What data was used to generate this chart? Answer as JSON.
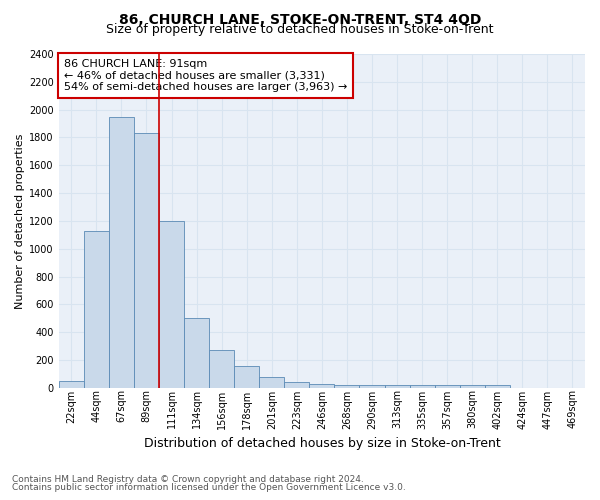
{
  "title": "86, CHURCH LANE, STOKE-ON-TRENT, ST4 4QD",
  "subtitle": "Size of property relative to detached houses in Stoke-on-Trent",
  "xlabel": "Distribution of detached houses by size in Stoke-on-Trent",
  "ylabel": "Number of detached properties",
  "footnote1": "Contains HM Land Registry data © Crown copyright and database right 2024.",
  "footnote2": "Contains public sector information licensed under the Open Government Licence v3.0.",
  "annotation_line1": "86 CHURCH LANE: 91sqm",
  "annotation_line2": "← 46% of detached houses are smaller (3,331)",
  "annotation_line3": "54% of semi-detached houses are larger (3,963) →",
  "bar_color": "#c9d9ea",
  "bar_edge_color": "#5a8ab5",
  "vline_color": "#cc0000",
  "annotation_box_edgecolor": "#cc0000",
  "annotation_box_facecolor": "#ffffff",
  "categories": [
    "22sqm",
    "44sqm",
    "67sqm",
    "89sqm",
    "111sqm",
    "134sqm",
    "156sqm",
    "178sqm",
    "201sqm",
    "223sqm",
    "246sqm",
    "268sqm",
    "290sqm",
    "313sqm",
    "335sqm",
    "357sqm",
    "380sqm",
    "402sqm",
    "424sqm",
    "447sqm",
    "469sqm"
  ],
  "values": [
    50,
    1130,
    1950,
    1830,
    1200,
    500,
    270,
    155,
    80,
    40,
    25,
    20,
    20,
    20,
    20,
    20,
    20,
    20,
    0,
    0,
    0
  ],
  "ylim": [
    0,
    2400
  ],
  "yticks": [
    0,
    200,
    400,
    600,
    800,
    1000,
    1200,
    1400,
    1600,
    1800,
    2000,
    2200,
    2400
  ],
  "vline_x": 3.5,
  "title_fontsize": 10,
  "subtitle_fontsize": 9,
  "xlabel_fontsize": 9,
  "ylabel_fontsize": 8,
  "tick_fontsize": 7,
  "annotation_fontsize": 8,
  "footnote_fontsize": 6.5,
  "grid_color": "#d8e4f0",
  "background_color": "#eaf0f8"
}
